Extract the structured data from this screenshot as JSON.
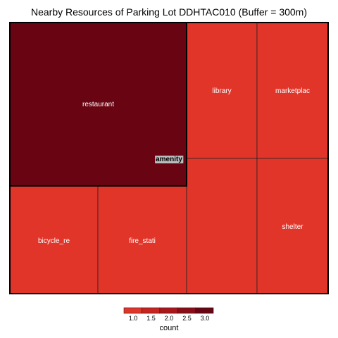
{
  "chart_data": {
    "type": "treemap",
    "title": "Nearby Resources of Parking Lot DDHTAC010 (Buffer = 300m)",
    "group": "amenity",
    "tiles": [
      {
        "label": "restaurant",
        "value": 3
      },
      {
        "label": "bicycle_re",
        "value": 1
      },
      {
        "label": "fire_stati",
        "value": 1
      },
      {
        "label": "library",
        "value": 1
      },
      {
        "label": "marketplac",
        "value": 1
      },
      {
        "label": "",
        "value": 1
      },
      {
        "label": "shelter",
        "value": 1
      }
    ],
    "legend": {
      "title": "count",
      "ticks": [
        "1.0",
        "1.5",
        "2.0",
        "2.5",
        "3.0"
      ],
      "colors": [
        "#e2352a",
        "#c8231f",
        "#ab161a",
        "#8b0c16",
        "#690412"
      ]
    },
    "color_min": "#e2352a",
    "color_max": "#690412"
  }
}
